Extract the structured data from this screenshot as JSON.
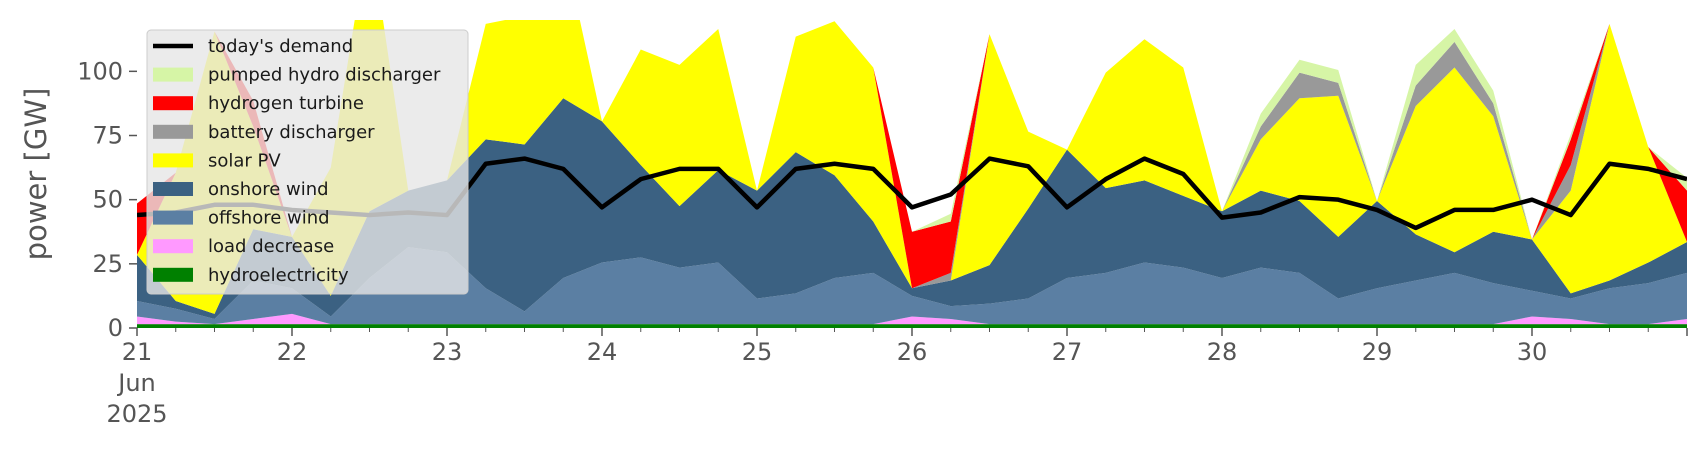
{
  "chart_data": {
    "type": "area",
    "title": "",
    "xlabel": "",
    "ylabel": "power [GW]",
    "ylim": [
      0,
      120
    ],
    "yticks": [
      0,
      25,
      50,
      75,
      100
    ],
    "xlim": [
      "2025-06-21",
      "2025-07-01"
    ],
    "xticks": [
      {
        "date": "2025-06-21",
        "lines": [
          "21",
          "Jun",
          "2025"
        ]
      },
      {
        "date": "2025-06-22",
        "lines": [
          "22"
        ]
      },
      {
        "date": "2025-06-23",
        "lines": [
          "23"
        ]
      },
      {
        "date": "2025-06-24",
        "lines": [
          "24"
        ]
      },
      {
        "date": "2025-06-25",
        "lines": [
          "25"
        ]
      },
      {
        "date": "2025-06-26",
        "lines": [
          "26"
        ]
      },
      {
        "date": "2025-06-27",
        "lines": [
          "27"
        ]
      },
      {
        "date": "2025-06-28",
        "lines": [
          "28"
        ]
      },
      {
        "date": "2025-06-29",
        "lines": [
          "29"
        ]
      },
      {
        "date": "2025-06-30",
        "lines": [
          "30"
        ]
      }
    ],
    "legend_position": "top-left",
    "grid": false,
    "x": [
      "2025-06-21 00:00",
      "2025-06-21 06:00",
      "2025-06-21 12:00",
      "2025-06-21 18:00",
      "2025-06-22 00:00",
      "2025-06-22 06:00",
      "2025-06-22 12:00",
      "2025-06-22 18:00",
      "2025-06-23 00:00",
      "2025-06-23 06:00",
      "2025-06-23 12:00",
      "2025-06-23 18:00",
      "2025-06-24 00:00",
      "2025-06-24 06:00",
      "2025-06-24 12:00",
      "2025-06-24 18:00",
      "2025-06-25 00:00",
      "2025-06-25 06:00",
      "2025-06-25 12:00",
      "2025-06-25 18:00",
      "2025-06-26 00:00",
      "2025-06-26 06:00",
      "2025-06-26 12:00",
      "2025-06-26 18:00",
      "2025-06-27 00:00",
      "2025-06-27 06:00",
      "2025-06-27 12:00",
      "2025-06-27 18:00",
      "2025-06-28 00:00",
      "2025-06-28 06:00",
      "2025-06-28 12:00",
      "2025-06-28 18:00",
      "2025-06-29 00:00",
      "2025-06-29 06:00",
      "2025-06-29 12:00",
      "2025-06-29 18:00",
      "2025-06-30 00:00",
      "2025-06-30 06:00",
      "2025-06-30 12:00",
      "2025-06-30 18:00",
      "2025-07-01 00:00"
    ],
    "demand": {
      "name": "today's demand",
      "color": "#000000",
      "values": [
        44,
        45,
        48,
        48,
        46,
        45,
        44,
        45,
        44,
        64,
        66,
        62,
        47,
        58,
        62,
        62,
        47,
        62,
        64,
        62,
        47,
        52,
        66,
        63,
        47,
        58,
        66,
        60,
        43,
        45,
        51,
        50,
        46,
        39,
        46,
        46,
        50,
        44,
        64,
        62,
        58
      ]
    },
    "series": [
      {
        "name": "hydroelectricity",
        "color": "#008000",
        "values": [
          1.5,
          1.5,
          1.5,
          1.5,
          1.5,
          1.5,
          1.5,
          1.5,
          1.5,
          1.5,
          1.5,
          1.5,
          1.5,
          1.5,
          1.5,
          1.5,
          1.5,
          1.5,
          1.5,
          1.5,
          1.5,
          1.5,
          1.5,
          1.5,
          1.5,
          1.5,
          1.5,
          1.5,
          1.5,
          1.5,
          1.5,
          1.5,
          1.5,
          1.5,
          1.5,
          1.5,
          1.5,
          1.5,
          1.5,
          1.5,
          1.5
        ]
      },
      {
        "name": "load decrease",
        "color": "#ff99ff",
        "values": [
          3,
          1,
          0,
          2,
          4,
          0,
          0,
          0,
          0,
          0,
          0,
          0,
          0,
          0,
          0,
          0,
          0,
          0,
          0,
          0,
          3,
          2,
          0,
          0,
          0,
          0,
          0,
          0,
          0,
          0,
          0,
          0,
          0,
          0,
          0,
          0,
          3,
          2,
          0,
          0,
          2
        ]
      },
      {
        "name": "offshore wind",
        "color": "#5b7fa3",
        "values": [
          6,
          5,
          2,
          15,
          10,
          3,
          18,
          30,
          28,
          14,
          5,
          18,
          24,
          26,
          22,
          24,
          10,
          12,
          18,
          20,
          8,
          5,
          8,
          10,
          18,
          20,
          24,
          22,
          18,
          22,
          20,
          10,
          14,
          17,
          20,
          16,
          10,
          8,
          14,
          16,
          18
        ]
      },
      {
        "name": "onshore wind",
        "color": "#3b6182",
        "values": [
          18,
          3,
          2,
          20,
          20,
          8,
          26,
          22,
          28,
          58,
          65,
          70,
          55,
          36,
          24,
          36,
          42,
          55,
          40,
          20,
          3,
          10,
          15,
          35,
          50,
          33,
          32,
          28,
          26,
          30,
          28,
          24,
          34,
          18,
          8,
          20,
          20,
          2,
          3,
          8,
          12
        ]
      },
      {
        "name": "solar PV",
        "color": "#ffff00",
        "values": [
          0,
          50,
          110,
          40,
          0,
          50,
          110,
          0,
          0,
          45,
          50,
          60,
          0,
          45,
          55,
          55,
          0,
          45,
          60,
          60,
          0,
          0,
          90,
          30,
          0,
          45,
          55,
          50,
          0,
          20,
          40,
          55,
          0,
          50,
          72,
          45,
          0,
          40,
          100,
          45,
          0
        ]
      },
      {
        "name": "battery discharger",
        "color": "#999999",
        "values": [
          0,
          0,
          0,
          0,
          0,
          0,
          0,
          0,
          0,
          0,
          0,
          0,
          0,
          0,
          0,
          0,
          0,
          0,
          0,
          0,
          0,
          3,
          0,
          0,
          0,
          0,
          0,
          0,
          0,
          5,
          10,
          5,
          0,
          8,
          10,
          5,
          0,
          10,
          0,
          0,
          0
        ]
      },
      {
        "name": "hydrogen turbine",
        "color": "#ff0000",
        "values": [
          20,
          0,
          0,
          10,
          0,
          0,
          0,
          0,
          0,
          0,
          0,
          0,
          0,
          0,
          0,
          0,
          0,
          0,
          0,
          0,
          22,
          20,
          0,
          0,
          0,
          0,
          0,
          0,
          0,
          0,
          0,
          0,
          0,
          0,
          0,
          0,
          0,
          10,
          0,
          0,
          20
        ]
      },
      {
        "name": "pumped hydro discharger",
        "color": "#d6f5a6",
        "values": [
          0,
          0,
          0,
          0,
          0,
          0,
          0,
          0,
          0,
          0,
          0,
          0,
          0,
          0,
          0,
          0,
          0,
          0,
          0,
          0,
          0,
          3,
          0,
          0,
          0,
          0,
          0,
          0,
          0,
          5,
          5,
          5,
          0,
          8,
          5,
          5,
          0,
          2,
          0,
          0,
          5
        ]
      }
    ],
    "legend_order": [
      "today's demand",
      "pumped hydro discharger",
      "hydrogen turbine",
      "battery discharger",
      "solar PV",
      "onshore wind",
      "offshore wind",
      "load decrease",
      "hydroelectricity"
    ]
  }
}
